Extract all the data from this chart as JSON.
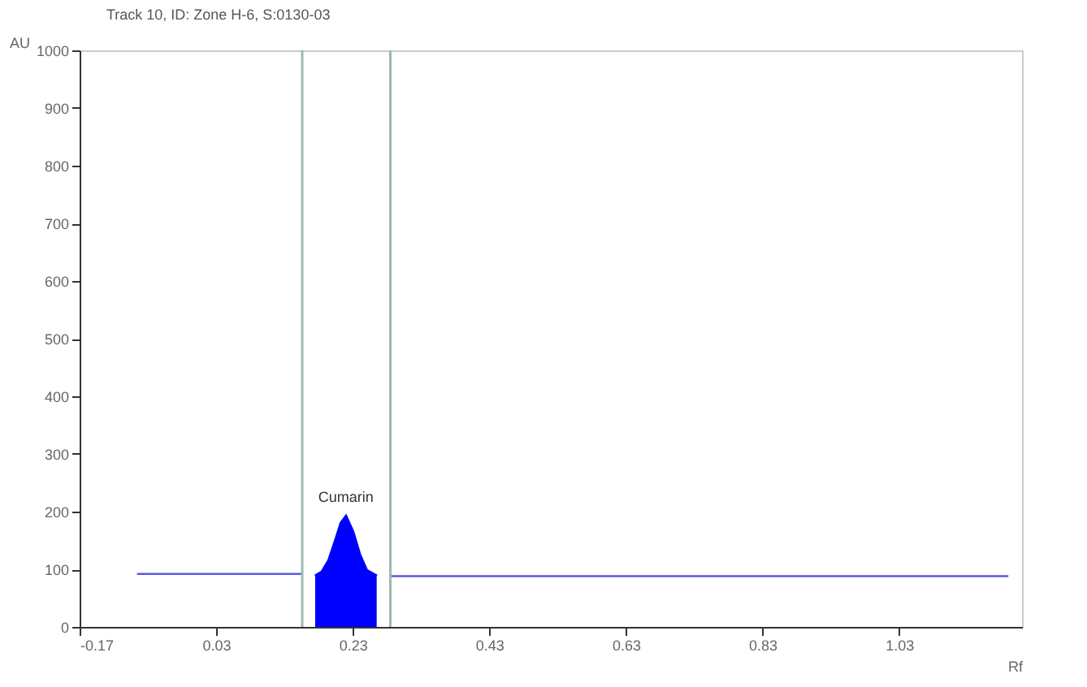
{
  "chart_data": {
    "type": "line",
    "title": "Track 10, ID: Zone H-6, S:0130-03",
    "xlabel": "Rf",
    "ylabel": "AU",
    "series": [
      {
        "color": "#5a5ae6",
        "x": [
          -0.086,
          0.156,
          0.175,
          0.265,
          0.285,
          1.19
        ],
        "values": [
          92,
          92,
          null,
          null,
          88,
          88
        ]
      },
      {
        "type": "area",
        "color": "#0000ff",
        "x": [
          0.175,
          0.185,
          0.195,
          0.205,
          0.213,
          0.22,
          0.23,
          0.24,
          0.25,
          0.265
        ],
        "values": [
          88,
          95,
          115,
          150,
          180,
          191,
          165,
          125,
          98,
          88
        ]
      }
    ],
    "ref_lines": [
      {
        "axis": "x",
        "value": 0.156,
        "color": "#9fb8ae"
      },
      {
        "axis": "x",
        "value": 0.285,
        "color": "#9fb8ae"
      }
    ],
    "annotations": [
      {
        "text": "Cumarin",
        "x": 0.22,
        "y": 191
      }
    ],
    "xlim": [
      -0.17,
      1.21
    ],
    "xticks": [
      -0.17,
      0.03,
      0.23,
      0.43,
      0.63,
      0.83,
      1.03
    ],
    "ylim": [
      0,
      1000
    ],
    "yticks": [
      0,
      100,
      200,
      300,
      400,
      500,
      600,
      700,
      800,
      900,
      1000
    ],
    "grid": false
  }
}
